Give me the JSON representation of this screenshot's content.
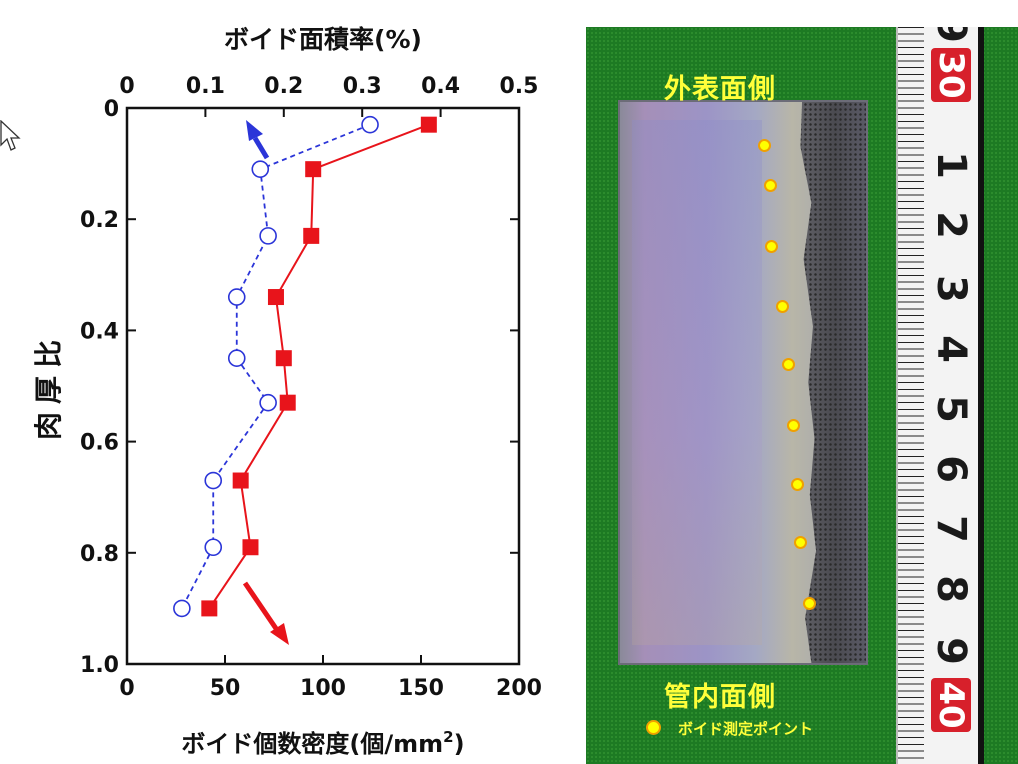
{
  "chart_data": {
    "type": "scatter",
    "title": "",
    "top_axis_label": "ボイド面積率(%)",
    "top_axis_ticks": [
      "0",
      "0.1",
      "0.2",
      "0.3",
      "0.4",
      "0.5"
    ],
    "top_axis_range": [
      0,
      0.5
    ],
    "xlabel": "ボイド個数密度(個/mm",
    "xlabel_superscript": "2",
    "xlabel_close": ")",
    "x_ticks": [
      "0",
      "50",
      "100",
      "150",
      "200"
    ],
    "x_range": [
      0,
      200
    ],
    "ylabel": "肉厚比",
    "y_ticks": [
      "0",
      "0.2",
      "0.4",
      "0.6",
      "0.8",
      "1.0"
    ],
    "y_range": [
      0,
      1.0
    ],
    "y_inverted": true,
    "grid": false,
    "series": [
      {
        "axis": "bottom",
        "marker": "filled-square",
        "line": "solid",
        "color": "#e8141b",
        "x": [
          154,
          95,
          94,
          76,
          80,
          82,
          58,
          63,
          42
        ],
        "y": [
          0.03,
          0.11,
          0.23,
          0.34,
          0.45,
          0.53,
          0.67,
          0.79,
          0.9
        ]
      },
      {
        "axis": "top",
        "marker": "open-circle",
        "line": "dashed",
        "color": "#2b35d8",
        "x": [
          0.31,
          0.17,
          0.18,
          0.14,
          0.14,
          0.18,
          0.11,
          0.11,
          0.07
        ],
        "y": [
          0.03,
          0.11,
          0.23,
          0.34,
          0.45,
          0.53,
          0.67,
          0.79,
          0.9
        ]
      }
    ]
  },
  "photo": {
    "label_top": "外表面側",
    "label_bottom": "管内面側",
    "legend_label": "ボイド測定ポイント",
    "ruler_numbers": [
      "9",
      "30",
      "1",
      "2",
      "3",
      "4",
      "5",
      "6",
      "7",
      "8",
      "9",
      "40"
    ],
    "ruler_red": [
      "30",
      "40"
    ]
  },
  "colors": {
    "series_bottom": "#e8141b",
    "series_top": "#2b35d8",
    "photo_label": "#ffff3a",
    "background_felt": "#1d7a23"
  },
  "icons": {
    "cursor": "mouse-pointer-icon"
  }
}
